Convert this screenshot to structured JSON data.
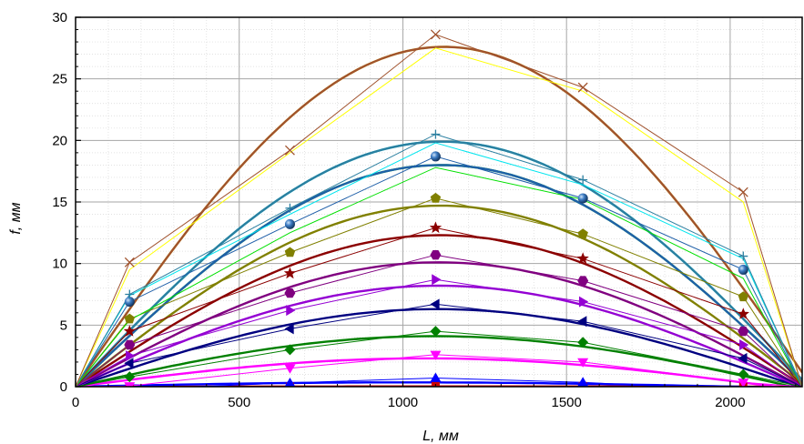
{
  "chart_data": {
    "type": "line",
    "title": "",
    "xlabel": "L, мм",
    "ylabel": "f, мм",
    "xlim": [
      0,
      2220
    ],
    "ylim": [
      0,
      30
    ],
    "x_ticks": [
      0,
      500,
      1000,
      1500,
      2000
    ],
    "y_ticks": [
      0,
      5,
      10,
      15,
      20,
      25,
      30
    ],
    "grid": true,
    "legend": "none",
    "measured_x": [
      0,
      165,
      655,
      1100,
      1550,
      2040,
      2220
    ],
    "series": [
      {
        "color": "#cc0000",
        "marker": "square",
        "measured": [
          0,
          0,
          0,
          0.05,
          0.05,
          0,
          0
        ],
        "fit_peak": 0.02,
        "fit_end": 2220
      },
      {
        "color": "#0000ff",
        "marker": "triangle-up",
        "measured": [
          0,
          -0.2,
          0.3,
          0.7,
          0.35,
          -0.3,
          0
        ],
        "fit_peak": 0.35,
        "fit_end": 2020
      },
      {
        "color": "#ff00ff",
        "marker": "triangle-down",
        "measured": [
          0,
          0.05,
          1.5,
          2.6,
          2.0,
          0.35,
          0
        ],
        "fit_peak": 2.3,
        "fit_end": 2140
      },
      {
        "color": "#008000",
        "marker": "diamond",
        "measured": [
          0,
          0.8,
          3.0,
          4.5,
          3.6,
          1.0,
          0
        ],
        "fit_peak": 4.1,
        "fit_end": 2190
      },
      {
        "color": "#000080",
        "marker": "triangle-left",
        "measured": [
          0,
          1.9,
          4.7,
          6.7,
          5.3,
          2.3,
          0
        ],
        "fit_peak": 6.3,
        "fit_end": 2210
      },
      {
        "color": "#9400d3",
        "marker": "triangle-right",
        "measured": [
          0,
          2.5,
          6.2,
          8.7,
          6.9,
          3.4,
          0
        ],
        "fit_peak": 8.2,
        "fit_end": 2215
      },
      {
        "color": "#800080",
        "marker": "hexagon",
        "measured": [
          0,
          3.4,
          7.6,
          10.7,
          8.6,
          4.5,
          0
        ],
        "fit_peak": 10.1,
        "fit_end": 2218
      },
      {
        "color": "#8b0000",
        "marker": "star",
        "measured": [
          0,
          4.5,
          9.2,
          12.9,
          10.4,
          5.9,
          0
        ],
        "fit_peak": 12.3,
        "fit_end": 2225
      },
      {
        "color": "#808000",
        "marker": "pentagon",
        "measured": [
          0,
          5.5,
          10.9,
          15.3,
          12.4,
          7.3,
          0
        ],
        "fit_peak": 14.7,
        "fit_end": 2232
      },
      {
        "color": "#00e000",
        "marker": "none",
        "measured": [
          0,
          5.4,
          12.5,
          17.8,
          15.2,
          8.8,
          0
        ],
        "fit_peak": 18.0,
        "fit_end": 2236
      },
      {
        "color": "#1f5fa8",
        "marker": "sphere",
        "measured": [
          0,
          6.9,
          13.2,
          18.7,
          15.3,
          9.5,
          0
        ],
        "fit_peak": 18.0,
        "fit_end": 2236
      },
      {
        "color": "#00e5ee",
        "marker": "none",
        "measured": [
          0,
          7.4,
          14.0,
          19.8,
          16.4,
          10.4,
          0
        ],
        "fit_peak": 19.9,
        "fit_end": 2240
      },
      {
        "color": "#2b7fa0",
        "marker": "plus",
        "measured": [
          0,
          7.5,
          14.5,
          20.5,
          16.8,
          10.6,
          0
        ],
        "fit_peak": 19.9,
        "fit_end": 2240
      },
      {
        "color": "#ffff00",
        "marker": "none",
        "measured": [
          0,
          9.5,
          19.0,
          27.5,
          24.0,
          15.0,
          0
        ],
        "fit_peak": 27.6,
        "fit_end": 2250
      },
      {
        "color": "#a0522d",
        "marker": "cross",
        "measured": [
          0,
          10.1,
          19.2,
          28.6,
          24.3,
          15.8,
          0
        ],
        "fit_peak": 27.6,
        "fit_end": 2250
      }
    ]
  }
}
